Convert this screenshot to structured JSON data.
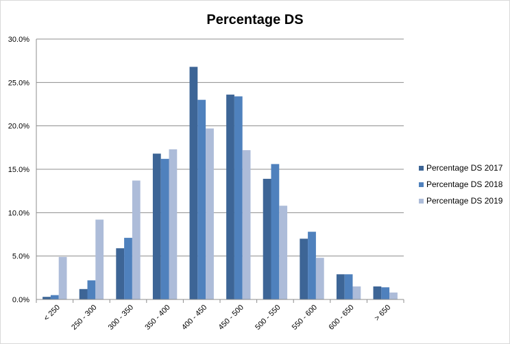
{
  "chart_data": {
    "type": "bar",
    "title": "Percentage DS",
    "xlabel": "",
    "ylabel": "",
    "ylim": [
      0,
      30
    ],
    "y_ticks": [
      "0.0%",
      "5.0%",
      "10.0%",
      "15.0%",
      "20.0%",
      "25.0%",
      "30.0%"
    ],
    "grid": true,
    "legend_position": "right",
    "categories": [
      "< 250",
      "250 - 300",
      "300 - 350",
      "350 - 400",
      "400 - 450",
      "450 - 500",
      "500 - 550",
      "550 - 600",
      "600 - 650",
      "> 650"
    ],
    "series": [
      {
        "name": "Percentage DS 2017",
        "color": "#3d6596",
        "values": [
          0.3,
          1.2,
          5.9,
          16.8,
          26.8,
          23.6,
          13.9,
          7.0,
          2.9,
          1.5
        ]
      },
      {
        "name": "Percentage DS 2018",
        "color": "#4f81bd",
        "values": [
          0.5,
          2.2,
          7.1,
          16.2,
          23.0,
          23.4,
          15.6,
          7.8,
          2.9,
          1.4
        ]
      },
      {
        "name": "Percentage DS 2019",
        "color": "#adbcd9",
        "values": [
          4.9,
          9.2,
          13.7,
          17.3,
          19.7,
          17.2,
          10.8,
          4.8,
          1.5,
          0.8
        ]
      }
    ]
  }
}
